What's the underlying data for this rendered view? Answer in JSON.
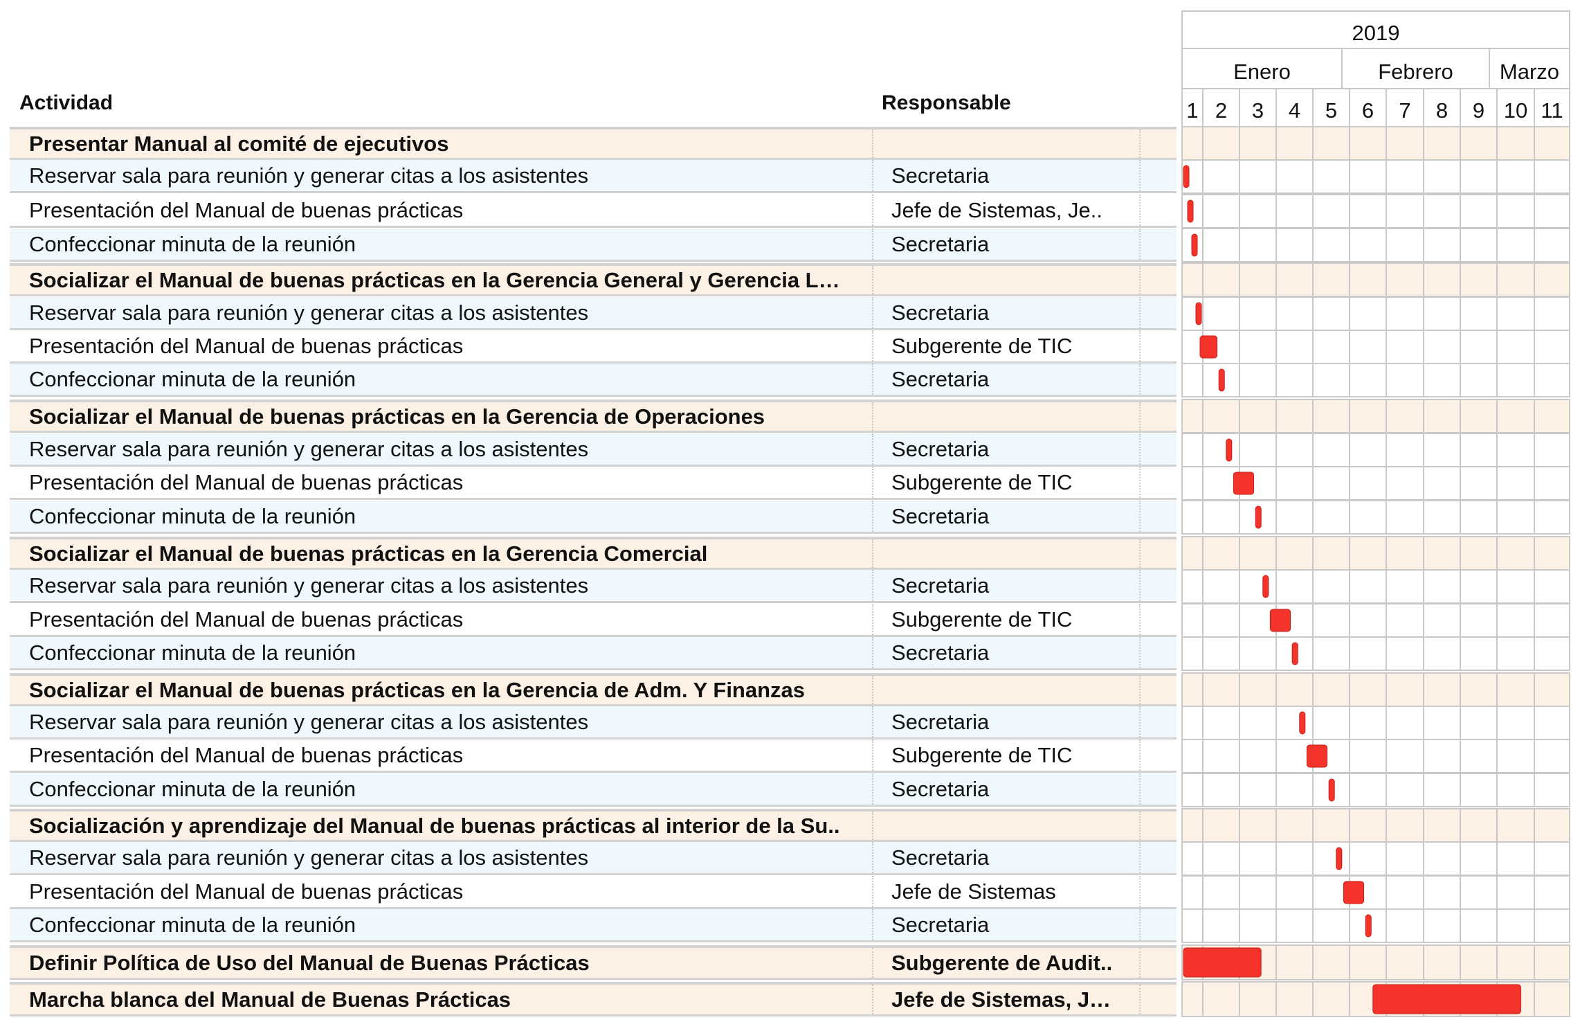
{
  "headers": {
    "activity": "Actividad",
    "responsible": "Responsable"
  },
  "timeline": {
    "year": "2019",
    "months": [
      "Enero",
      "Febrero",
      "Marzo"
    ],
    "weeks": [
      "1",
      "2",
      "3",
      "4",
      "5",
      "6",
      "7",
      "8",
      "9",
      "10",
      "11"
    ]
  },
  "colors": {
    "bar": "#f4332a",
    "group_bg": "#fdf0e4",
    "task_light_bg": "#eef8fd",
    "grid": "#c9c9c9"
  },
  "rows": [
    {
      "type": "group",
      "activity": "Presentar Manual al comité de ejecutivos",
      "responsible": ""
    },
    {
      "type": "task",
      "activity": "Reservar sala para reunión y generar citas a los asistentes",
      "responsible": "Secretaria",
      "start_week": 1.0,
      "end_week": 1.1
    },
    {
      "type": "task",
      "activity": "Presentación del Manual de buenas prácticas",
      "responsible": "Jefe de Sistemas, Je..",
      "start_week": 1.2,
      "end_week": 1.3
    },
    {
      "type": "task",
      "activity": "Confeccionar minuta de la reunión",
      "responsible": "Secretaria",
      "start_week": 1.4,
      "end_week": 1.5
    },
    {
      "type": "group",
      "activity": "Socializar el Manual de buenas prácticas en la Gerencia General y Gerencia L…",
      "responsible": ""
    },
    {
      "type": "task",
      "activity": "Reservar sala para reunión y generar citas a los asistentes",
      "responsible": "Secretaria",
      "start_week": 1.6,
      "end_week": 1.75
    },
    {
      "type": "task",
      "activity": "Presentación del Manual de buenas prácticas",
      "responsible": "Subgerente de TIC",
      "start_week": 1.8,
      "end_week": 2.35
    },
    {
      "type": "task",
      "activity": "Confeccionar minuta de la reunión",
      "responsible": "Secretaria",
      "start_week": 2.4,
      "end_week": 2.55
    },
    {
      "type": "group",
      "activity": "Socializar el Manual de buenas prácticas en la Gerencia de Operaciones",
      "responsible": ""
    },
    {
      "type": "task",
      "activity": "Reservar sala para reunión y generar citas a los asistentes",
      "responsible": "Secretaria",
      "start_week": 2.6,
      "end_week": 2.75
    },
    {
      "type": "task",
      "activity": "Presentación del Manual de buenas prácticas",
      "responsible": "Subgerente de TIC",
      "start_week": 2.8,
      "end_week": 3.35
    },
    {
      "type": "task",
      "activity": "Confeccionar minuta de la reunión",
      "responsible": "Secretaria",
      "start_week": 3.4,
      "end_week": 3.55
    },
    {
      "type": "group",
      "activity": "Socializar el Manual de buenas prácticas en la Gerencia Comercial",
      "responsible": ""
    },
    {
      "type": "task",
      "activity": "Reservar sala para reunión y generar citas a los asistentes",
      "responsible": "Secretaria",
      "start_week": 3.6,
      "end_week": 3.75
    },
    {
      "type": "task",
      "activity": "Presentación del Manual de buenas prácticas",
      "responsible": "Subgerente de TIC",
      "start_week": 3.8,
      "end_week": 4.35
    },
    {
      "type": "task",
      "activity": "Confeccionar minuta de la reunión",
      "responsible": "Secretaria",
      "start_week": 4.4,
      "end_week": 4.55
    },
    {
      "type": "group",
      "activity": "Socializar el Manual de buenas prácticas en la Gerencia de Adm. Y Finanzas",
      "responsible": ""
    },
    {
      "type": "task",
      "activity": "Reservar sala para reunión y generar citas a los asistentes",
      "responsible": "Secretaria",
      "start_week": 4.6,
      "end_week": 4.75
    },
    {
      "type": "task",
      "activity": "Presentación del Manual de buenas prácticas",
      "responsible": "Subgerente de TIC",
      "start_week": 4.8,
      "end_week": 5.35
    },
    {
      "type": "task",
      "activity": "Confeccionar minuta de la reunión",
      "responsible": "Secretaria",
      "start_week": 5.4,
      "end_week": 5.55
    },
    {
      "type": "group",
      "activity": "Socialización y aprendizaje del Manual de buenas prácticas al interior de la Su..",
      "responsible": ""
    },
    {
      "type": "task",
      "activity": "Reservar sala para reunión y generar citas a los asistentes",
      "responsible": "Secretaria",
      "start_week": 5.6,
      "end_week": 5.75
    },
    {
      "type": "task",
      "activity": "Presentación del Manual de buenas prácticas",
      "responsible": "Jefe de Sistemas",
      "start_week": 5.8,
      "end_week": 6.35
    },
    {
      "type": "task",
      "activity": "Confeccionar minuta de la reunión",
      "responsible": "Secretaria",
      "start_week": 6.4,
      "end_week": 6.55
    },
    {
      "type": "group",
      "activity": "Definir Política de Uso del Manual de Buenas Prácticas",
      "responsible": "Subgerente de Audit..",
      "start_week": 1.0,
      "end_week": 3.55
    },
    {
      "type": "group",
      "activity": "Marcha blanca del Manual de Buenas Prácticas",
      "responsible": "Jefe de Sistemas, J…",
      "start_week": 6.6,
      "end_week": 10.6
    }
  ]
}
